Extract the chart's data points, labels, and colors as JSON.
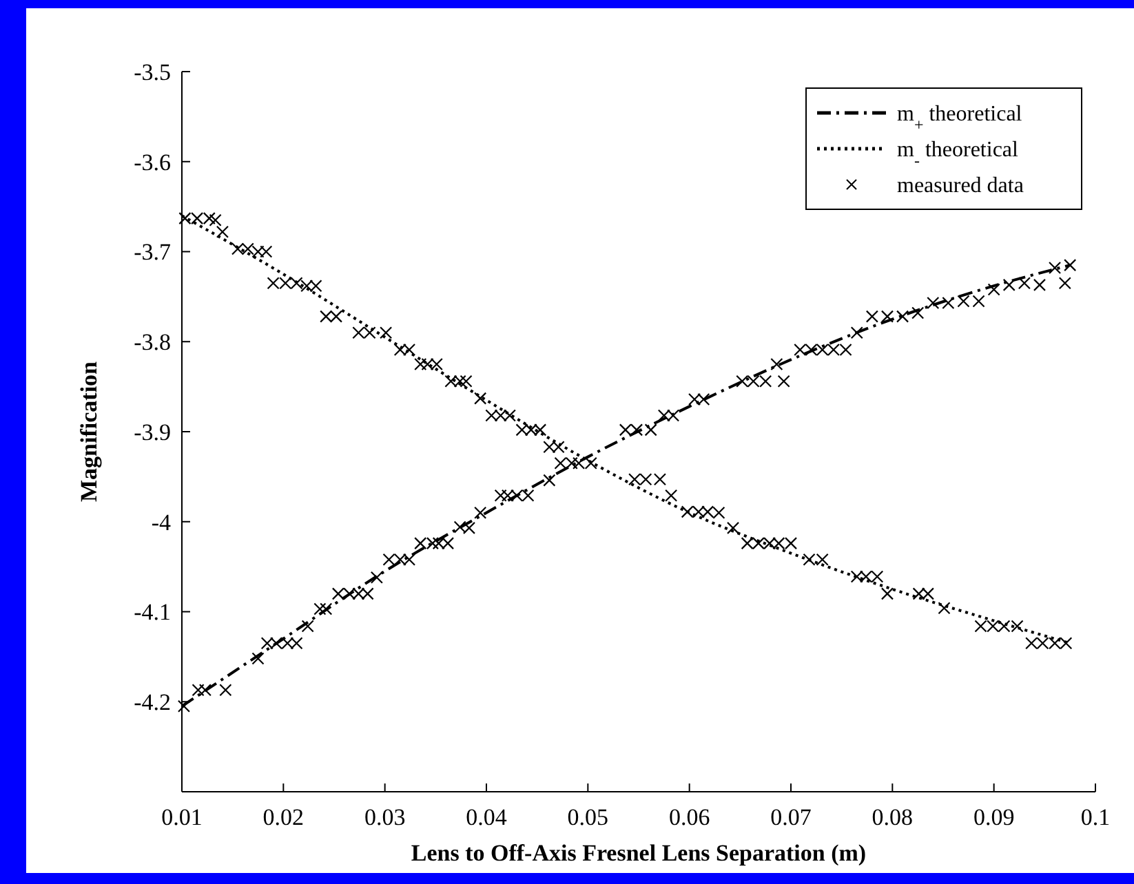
{
  "chart_data": {
    "type": "line",
    "xlabel": "Lens to Off-Axis Fresnel Lens Separation (m)",
    "ylabel": "Magnification",
    "xlim": [
      0.01,
      0.1
    ],
    "ylim": [
      -4.3,
      -3.5
    ],
    "xticks": [
      0.01,
      0.02,
      0.03,
      0.04,
      0.05,
      0.06,
      0.07,
      0.08,
      0.09,
      0.1
    ],
    "yticks": [
      -4.2,
      -4.1,
      {
        "value": -4,
        "label": "-4"
      },
      -3.9,
      -3.8,
      -3.7,
      -3.6,
      -3.5
    ],
    "grid": false,
    "legend": "top right",
    "series": [
      {
        "name": "m$_{+}$ theoretical",
        "color": "#000000",
        "line_style": "dashed",
        "marker": "none",
        "x": [
          0.01,
          0.02,
          0.03,
          0.04,
          0.05,
          0.06,
          0.07,
          0.08,
          0.09,
          0.0975
        ],
        "values": [
          -4.205,
          -4.13,
          -4.055,
          -3.99,
          -3.928,
          -3.872,
          -3.82,
          -3.775,
          -3.738,
          -3.715
        ]
      },
      {
        "name": "m$_{-}$ theoretical",
        "color": "#000000",
        "line_style": "dotted",
        "marker": "none",
        "x": [
          0.01,
          0.02,
          0.03,
          0.04,
          0.05,
          0.06,
          0.07,
          0.08,
          0.09,
          0.0975
        ],
        "values": [
          -3.66,
          -3.725,
          -3.795,
          -3.865,
          -3.932,
          -3.99,
          -4.035,
          -4.075,
          -4.11,
          -4.135
        ]
      },
      {
        "name": "measured data",
        "color": "#000000",
        "type": "scatter",
        "marker": "cross",
        "x": [
          0.0102,
          0.0116,
          0.0123,
          0.0143,
          0.0175,
          0.0184,
          0.0193,
          0.0204,
          0.0213,
          0.0224,
          0.0236,
          0.0242,
          0.0254,
          0.0265,
          0.0274,
          0.0283,
          0.0292,
          0.0304,
          0.0315,
          0.0324,
          0.0335,
          0.0347,
          0.0353,
          0.0362,
          0.0374,
          0.0383,
          0.0394,
          0.0414,
          0.0421,
          0.043,
          0.0441,
          0.0462,
          0.0473,
          0.0484,
          0.0491,
          0.0503,
          0.0537,
          0.0548,
          0.0562,
          0.0575,
          0.0584,
          0.0605,
          0.0614,
          0.0652,
          0.0663,
          0.0675,
          0.0686,
          0.0693,
          0.0709,
          0.072,
          0.0731,
          0.0742,
          0.0754,
          0.0765,
          0.078,
          0.0795,
          0.081,
          0.0825,
          0.084,
          0.0855,
          0.087,
          0.0885,
          0.09,
          0.0915,
          0.093,
          0.0945,
          0.096,
          0.097,
          0.0975,
          0.0103,
          0.0115,
          0.0127,
          0.0133,
          0.014,
          0.0155,
          0.0165,
          0.0175,
          0.0183,
          0.019,
          0.0202,
          0.0213,
          0.0223,
          0.0232,
          0.0242,
          0.0252,
          0.0274,
          0.0285,
          0.0301,
          0.0315,
          0.0324,
          0.0335,
          0.0342,
          0.0351,
          0.0365,
          0.0374,
          0.038,
          0.0394,
          0.0405,
          0.0414,
          0.0423,
          0.0435,
          0.0444,
          0.0453,
          0.0462,
          0.0471,
          0.0546,
          0.0557,
          0.0571,
          0.0582,
          0.0598,
          0.0609,
          0.0618,
          0.0629,
          0.0643,
          0.0657,
          0.0668,
          0.0679,
          0.0688,
          0.07,
          0.0718,
          0.0731,
          0.0765,
          0.0774,
          0.0785,
          0.0795,
          0.0826,
          0.0835,
          0.0851,
          0.0887,
          0.0899,
          0.091,
          0.0923,
          0.0937,
          0.0948,
          0.096,
          0.0971
        ],
        "values": [
          -4.205,
          -4.187,
          -4.187,
          -4.187,
          -4.152,
          -4.135,
          -4.135,
          -4.135,
          -4.135,
          -4.116,
          -4.097,
          -4.097,
          -4.08,
          -4.08,
          -4.08,
          -4.08,
          -4.062,
          -4.042,
          -4.042,
          -4.042,
          -4.024,
          -4.024,
          -4.024,
          -4.024,
          -4.006,
          -4.007,
          -3.99,
          -3.971,
          -3.971,
          -3.971,
          -3.971,
          -3.954,
          -3.935,
          -3.935,
          -3.935,
          -3.935,
          -3.898,
          -3.898,
          -3.898,
          -3.882,
          -3.882,
          -3.864,
          -3.864,
          -3.844,
          -3.844,
          -3.844,
          -3.825,
          -3.844,
          -3.809,
          -3.809,
          -3.809,
          -3.809,
          -3.809,
          -3.79,
          -3.772,
          -3.772,
          -3.772,
          -3.768,
          -3.757,
          -3.757,
          -3.755,
          -3.755,
          -3.742,
          -3.737,
          -3.735,
          -3.737,
          -3.718,
          -3.735,
          -3.715,
          -3.663,
          -3.663,
          -3.663,
          -3.665,
          -3.678,
          -3.697,
          -3.697,
          -3.7,
          -3.7,
          -3.735,
          -3.735,
          -3.735,
          -3.738,
          -3.738,
          -3.772,
          -3.772,
          -3.79,
          -3.79,
          -3.79,
          -3.809,
          -3.809,
          -3.825,
          -3.825,
          -3.825,
          -3.844,
          -3.844,
          -3.844,
          -3.863,
          -3.882,
          -3.882,
          -3.882,
          -3.898,
          -3.898,
          -3.898,
          -3.917,
          -3.917,
          -3.953,
          -3.953,
          -3.953,
          -3.971,
          -3.989,
          -3.989,
          -3.989,
          -3.99,
          -4.007,
          -4.024,
          -4.024,
          -4.024,
          -4.024,
          -4.024,
          -4.042,
          -4.042,
          -4.061,
          -4.061,
          -4.061,
          -4.08,
          -4.08,
          -4.08,
          -4.096,
          -4.116,
          -4.116,
          -4.116,
          -4.116,
          -4.135,
          -4.135,
          -4.135,
          -4.135
        ]
      }
    ]
  }
}
